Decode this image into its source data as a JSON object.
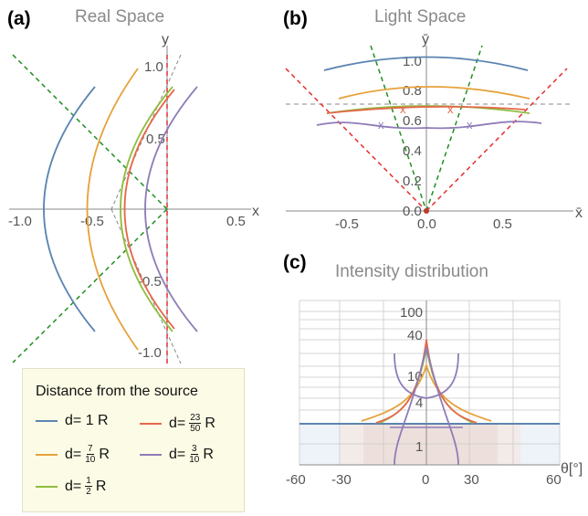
{
  "panels": {
    "a": {
      "label": "(a)",
      "title": "Real Space",
      "xlabel": "x",
      "ylabel": "y",
      "xticks": [
        "-1.0",
        "-0.5",
        "0.5"
      ],
      "yticks": [
        "1.0",
        "0.5",
        "-0.5",
        "-1.0"
      ]
    },
    "b": {
      "label": "(b)",
      "title": "Light Space",
      "xlabel": "x̄",
      "ylabel": "ȳ",
      "xticks": [
        "-0.5",
        "0.0",
        "0.5"
      ],
      "yticks": [
        "1.0",
        "0.8",
        "0.6",
        "0.4",
        "0.2",
        "0.0"
      ],
      "markers": [
        "x",
        "x",
        "x",
        "x"
      ]
    },
    "c": {
      "label": "(c)",
      "title": "Intensity distribution",
      "xlabel": "θ[°]",
      "xticks": [
        "-60",
        "-30",
        "0",
        "30",
        "60"
      ],
      "yticks": [
        "100",
        "40",
        "10",
        "4",
        "1"
      ]
    }
  },
  "legend": {
    "title": "Distance from the source",
    "items": [
      {
        "prefix": "d= 1 R",
        "color": "#5b84b1"
      },
      {
        "prefix": "d=",
        "num": "7",
        "den": "10",
        "suffix": "R",
        "color": "#e6a23c"
      },
      {
        "prefix": "d=",
        "num": "1",
        "den": "2",
        "suffix": "R",
        "color": "#8fbd3e"
      },
      {
        "prefix": "d=",
        "num": "23",
        "den": "50",
        "suffix": "R",
        "color": "#e4694a"
      },
      {
        "prefix": "d=",
        "num": "3",
        "den": "10",
        "suffix": "R",
        "color": "#8f7cb8"
      }
    ]
  },
  "colors": {
    "blue": "#5b84b1",
    "orange": "#e6a23c",
    "green": "#8fbd3e",
    "red": "#e4694a",
    "purple": "#8f7cb8",
    "dashGreen": "#1f8f1f",
    "dashRed": "#e52d2d",
    "dashGray": "#888888"
  }
}
